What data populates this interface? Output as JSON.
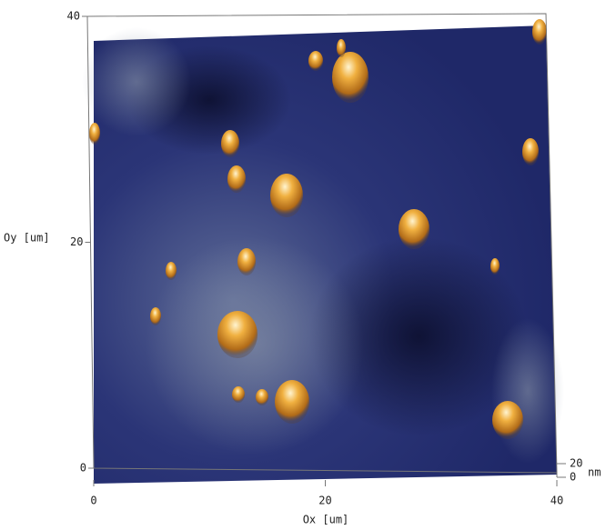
{
  "chart_data": {
    "type": "surface",
    "x_label": "Ox [um]",
    "y_label": "Oy [um]",
    "z_label": "nm",
    "xlim": [
      0,
      40
    ],
    "xticks": [
      0,
      20,
      40
    ],
    "ylim": [
      0,
      40
    ],
    "yticks": [
      0,
      20,
      40
    ],
    "zlim": [
      0,
      20
    ],
    "zticks": [
      0,
      20
    ]
  }
}
